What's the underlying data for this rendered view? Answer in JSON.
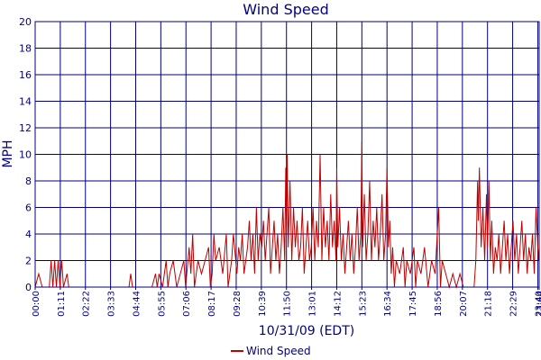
{
  "chart_data": {
    "type": "line",
    "title": "Wind Speed",
    "xlabel": "10/31/09 (EDT)",
    "ylabel": "MPH",
    "ylim": [
      0,
      20
    ],
    "yticks": [
      "0",
      "2",
      "4",
      "6",
      "8",
      "10",
      "12",
      "14",
      "16",
      "18",
      "20"
    ],
    "xticks": [
      "00:00",
      "01:11",
      "02:22",
      "03:33",
      "04:44",
      "05:55",
      "07:06",
      "08:17",
      "09:28",
      "10:39",
      "11:50",
      "13:01",
      "14:12",
      "15:23",
      "16:34",
      "17:45",
      "18:56",
      "20:07",
      "21:18",
      "22:29",
      "23:40",
      "23:44"
    ],
    "grid": true,
    "legend_position": "bottom-center",
    "series": [
      {
        "name": "Wind Speed",
        "color": "#c00000",
        "points": [
          [
            "00:00",
            0
          ],
          [
            "00:10",
            1
          ],
          [
            "00:20",
            0
          ],
          [
            "00:40",
            0
          ],
          [
            "00:45",
            2
          ],
          [
            "00:50",
            0
          ],
          [
            "00:55",
            2
          ],
          [
            "01:00",
            0
          ],
          [
            "01:05",
            2
          ],
          [
            "01:10",
            0
          ],
          [
            "01:15",
            2
          ],
          [
            "01:20",
            0
          ],
          [
            "01:30",
            1
          ],
          [
            "01:35",
            0
          ],
          [
            "02:00",
            0
          ],
          [
            "03:00",
            0
          ],
          [
            "04:00",
            0
          ],
          [
            "04:25",
            0
          ],
          [
            "04:30",
            1
          ],
          [
            "04:35",
            0
          ],
          [
            "05:30",
            0
          ],
          [
            "05:40",
            1
          ],
          [
            "05:45",
            0
          ],
          [
            "05:50",
            1
          ],
          [
            "06:00",
            0
          ],
          [
            "06:10",
            2
          ],
          [
            "06:15",
            0
          ],
          [
            "06:20",
            1
          ],
          [
            "06:30",
            2
          ],
          [
            "06:40",
            0
          ],
          [
            "06:50",
            1
          ],
          [
            "07:00",
            2
          ],
          [
            "07:05",
            0
          ],
          [
            "07:15",
            3
          ],
          [
            "07:20",
            1
          ],
          [
            "07:25",
            4
          ],
          [
            "07:30",
            0
          ],
          [
            "07:40",
            2
          ],
          [
            "07:50",
            1
          ],
          [
            "08:00",
            2
          ],
          [
            "08:10",
            3
          ],
          [
            "08:15",
            0
          ],
          [
            "08:20",
            1
          ],
          [
            "08:25",
            4
          ],
          [
            "08:30",
            2
          ],
          [
            "08:40",
            3
          ],
          [
            "08:50",
            1
          ],
          [
            "09:00",
            4
          ],
          [
            "09:05",
            0
          ],
          [
            "09:15",
            2
          ],
          [
            "09:20",
            4
          ],
          [
            "09:30",
            1
          ],
          [
            "09:35",
            3
          ],
          [
            "09:40",
            2
          ],
          [
            "09:45",
            4
          ],
          [
            "09:50",
            1
          ],
          [
            "10:00",
            3
          ],
          [
            "10:05",
            5
          ],
          [
            "10:10",
            2
          ],
          [
            "10:15",
            4
          ],
          [
            "10:20",
            1
          ],
          [
            "10:25",
            6
          ],
          [
            "10:30",
            2
          ],
          [
            "10:35",
            4
          ],
          [
            "10:40",
            3
          ],
          [
            "10:45",
            5
          ],
          [
            "10:50",
            2
          ],
          [
            "10:55",
            4
          ],
          [
            "11:00",
            6
          ],
          [
            "11:05",
            1
          ],
          [
            "11:10",
            3
          ],
          [
            "11:15",
            5
          ],
          [
            "11:20",
            2
          ],
          [
            "11:25",
            4
          ],
          [
            "11:30",
            1
          ],
          [
            "11:35",
            3
          ],
          [
            "11:40",
            6
          ],
          [
            "11:45",
            2
          ],
          [
            "11:48",
            9
          ],
          [
            "11:50",
            4
          ],
          [
            "11:52",
            10
          ],
          [
            "11:55",
            3
          ],
          [
            "12:00",
            8
          ],
          [
            "12:05",
            2
          ],
          [
            "12:10",
            6
          ],
          [
            "12:15",
            3
          ],
          [
            "12:20",
            5
          ],
          [
            "12:25",
            2
          ],
          [
            "12:30",
            3
          ],
          [
            "12:35",
            6
          ],
          [
            "12:40",
            1
          ],
          [
            "12:45",
            3
          ],
          [
            "12:50",
            5
          ],
          [
            "12:55",
            2
          ],
          [
            "13:00",
            3
          ],
          [
            "13:05",
            6
          ],
          [
            "13:10",
            2
          ],
          [
            "13:15",
            5
          ],
          [
            "13:20",
            3
          ],
          [
            "13:25",
            10
          ],
          [
            "13:30",
            2
          ],
          [
            "13:35",
            6
          ],
          [
            "13:40",
            3
          ],
          [
            "13:45",
            5
          ],
          [
            "13:50",
            2
          ],
          [
            "13:55",
            7
          ],
          [
            "14:00",
            3
          ],
          [
            "14:05",
            5
          ],
          [
            "14:10",
            2
          ],
          [
            "14:12",
            9
          ],
          [
            "14:15",
            3
          ],
          [
            "14:20",
            6
          ],
          [
            "14:25",
            2
          ],
          [
            "14:30",
            4
          ],
          [
            "14:35",
            1
          ],
          [
            "14:40",
            3
          ],
          [
            "14:45",
            5
          ],
          [
            "14:50",
            2
          ],
          [
            "14:55",
            4
          ],
          [
            "15:00",
            1
          ],
          [
            "15:05",
            3
          ],
          [
            "15:10",
            6
          ],
          [
            "15:15",
            2
          ],
          [
            "15:20",
            4
          ],
          [
            "15:23",
            11
          ],
          [
            "15:25",
            3
          ],
          [
            "15:30",
            7
          ],
          [
            "15:35",
            2
          ],
          [
            "15:40",
            4
          ],
          [
            "15:45",
            8
          ],
          [
            "15:50",
            2
          ],
          [
            "15:55",
            5
          ],
          [
            "16:00",
            3
          ],
          [
            "16:05",
            6
          ],
          [
            "16:10",
            2
          ],
          [
            "16:15",
            4
          ],
          [
            "16:20",
            7
          ],
          [
            "16:25",
            2
          ],
          [
            "16:30",
            4
          ],
          [
            "16:34",
            9
          ],
          [
            "16:38",
            3
          ],
          [
            "16:42",
            5
          ],
          [
            "16:46",
            1
          ],
          [
            "16:50",
            3
          ],
          [
            "16:55",
            0
          ],
          [
            "17:00",
            2
          ],
          [
            "17:10",
            1
          ],
          [
            "17:20",
            3
          ],
          [
            "17:25",
            0
          ],
          [
            "17:30",
            2
          ],
          [
            "17:40",
            1
          ],
          [
            "17:50",
            3
          ],
          [
            "17:55",
            0
          ],
          [
            "18:00",
            2
          ],
          [
            "18:10",
            1
          ],
          [
            "18:20",
            3
          ],
          [
            "18:30",
            0
          ],
          [
            "18:40",
            2
          ],
          [
            "18:50",
            1
          ],
          [
            "19:00",
            6
          ],
          [
            "19:05",
            0
          ],
          [
            "19:10",
            2
          ],
          [
            "19:20",
            1
          ],
          [
            "19:30",
            0
          ],
          [
            "19:40",
            1
          ],
          [
            "19:50",
            0
          ],
          [
            "20:00",
            1
          ],
          [
            "20:10",
            0
          ],
          [
            "20:20",
            0
          ],
          [
            "20:40",
            0
          ],
          [
            "20:45",
            2
          ],
          [
            "20:50",
            8
          ],
          [
            "20:52",
            5
          ],
          [
            "20:55",
            9
          ],
          [
            "21:00",
            3
          ],
          [
            "21:05",
            6
          ],
          [
            "21:10",
            2
          ],
          [
            "21:15",
            7
          ],
          [
            "21:18",
            3
          ],
          [
            "21:22",
            8
          ],
          [
            "21:26",
            2
          ],
          [
            "21:30",
            5
          ],
          [
            "21:35",
            1
          ],
          [
            "21:40",
            3
          ],
          [
            "21:45",
            2
          ],
          [
            "21:50",
            4
          ],
          [
            "21:55",
            1
          ],
          [
            "22:00",
            3
          ],
          [
            "22:05",
            5
          ],
          [
            "22:10",
            2
          ],
          [
            "22:15",
            4
          ],
          [
            "22:20",
            1
          ],
          [
            "22:25",
            3
          ],
          [
            "22:30",
            5
          ],
          [
            "22:35",
            2
          ],
          [
            "22:40",
            4
          ],
          [
            "22:45",
            1
          ],
          [
            "22:50",
            3
          ],
          [
            "22:55",
            5
          ],
          [
            "23:00",
            2
          ],
          [
            "23:05",
            4
          ],
          [
            "23:10",
            1
          ],
          [
            "23:15",
            3
          ],
          [
            "23:20",
            2
          ],
          [
            "23:25",
            4
          ],
          [
            "23:30",
            1
          ],
          [
            "23:35",
            6
          ],
          [
            "23:40",
            3
          ],
          [
            "23:42",
            2
          ],
          [
            "23:44",
            3
          ]
        ]
      }
    ]
  }
}
